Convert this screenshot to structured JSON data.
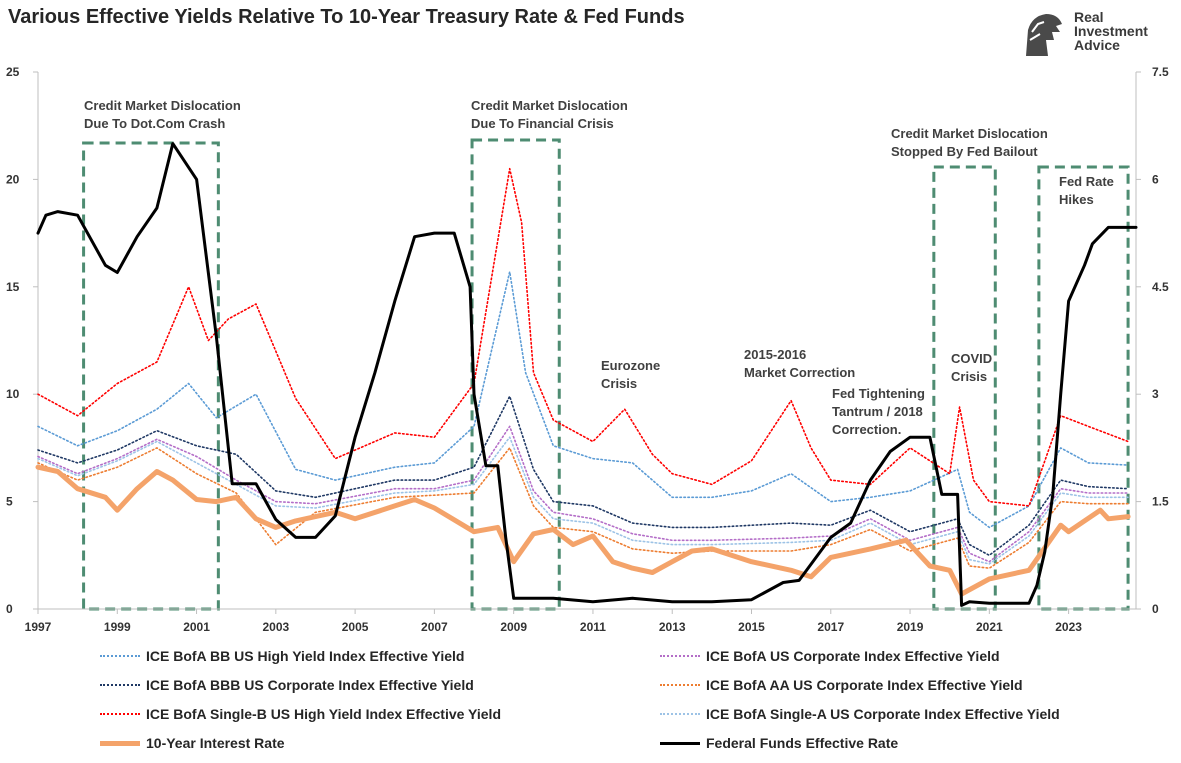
{
  "title": "Various Effective Yields Relative To 10-Year Treasury Rate & Fed Funds",
  "logo": {
    "line1": "Real",
    "line2": "Investment",
    "line3": "Advice",
    "icon": "lion-head-icon"
  },
  "chart_data": {
    "type": "line",
    "title": "Various Effective Yields Relative To 10-Year Treasury Rate & Fed Funds",
    "xlabel": "",
    "ylabel": "",
    "xlim": [
      1997,
      2024.7
    ],
    "ylim": [
      0,
      25
    ],
    "y2lim": [
      0,
      7.5
    ],
    "x_ticks": [
      "1997",
      "1999",
      "2001",
      "2003",
      "2005",
      "2007",
      "2009",
      "2011",
      "2013",
      "2015",
      "2017",
      "2019",
      "2021",
      "2023"
    ],
    "y_ticks": [
      "0",
      "5",
      "10",
      "15",
      "20",
      "25"
    ],
    "y2_ticks": [
      "0",
      "1.5",
      "3",
      "4.5",
      "6",
      "7.5"
    ],
    "grid": false,
    "legend_position": "bottom",
    "series": [
      {
        "name": "ICE BofA BB US High Yield Index Effective Yield",
        "color": "#5b9bd5",
        "style": "dotted",
        "axis": "left",
        "x": [
          1997,
          1998,
          1999,
          2000,
          2000.8,
          2001.5,
          2002.5,
          2003.5,
          2004.5,
          2006,
          2007,
          2008,
          2008.9,
          2009.3,
          2010,
          2011,
          2012,
          2013,
          2014,
          2015,
          2016,
          2017,
          2018,
          2019,
          2020.2,
          2020.5,
          2021,
          2022,
          2022.8,
          2023.5,
          2024.5
        ],
        "values": [
          8.5,
          7.6,
          8.3,
          9.3,
          10.5,
          8.9,
          10.0,
          6.5,
          6.0,
          6.6,
          6.8,
          8.5,
          15.7,
          11.0,
          7.6,
          7.0,
          6.8,
          5.2,
          5.2,
          5.5,
          6.3,
          5.0,
          5.2,
          5.5,
          6.5,
          4.5,
          3.8,
          4.8,
          7.5,
          6.8,
          6.7
        ]
      },
      {
        "name": "ICE BofA US Corporate Index Effective Yield",
        "color": "#b46ec8",
        "style": "dotted",
        "axis": "left",
        "x": [
          1997,
          1998,
          1999,
          2000,
          2001,
          2002,
          2003,
          2004,
          2006,
          2007,
          2008,
          2008.9,
          2009.5,
          2010,
          2011,
          2012,
          2013,
          2014,
          2016,
          2017,
          2018,
          2019,
          2020.2,
          2020.5,
          2021,
          2022,
          2022.8,
          2023.5,
          2024.5
        ],
        "values": [
          7.1,
          6.3,
          7.0,
          7.9,
          7.1,
          6.0,
          5.0,
          4.9,
          5.6,
          5.6,
          6.0,
          8.5,
          5.5,
          4.5,
          4.2,
          3.5,
          3.2,
          3.2,
          3.3,
          3.4,
          4.2,
          3.2,
          3.8,
          2.6,
          2.2,
          3.6,
          5.6,
          5.4,
          5.4
        ]
      },
      {
        "name": "ICE BofA BBB US Corporate Index Effective Yield",
        "color": "#1f3864",
        "style": "dotted",
        "axis": "left",
        "x": [
          1997,
          1998,
          1999,
          2000,
          2001,
          2002,
          2003,
          2004,
          2006,
          2007,
          2008,
          2008.9,
          2009.5,
          2010,
          2011,
          2012,
          2013,
          2014,
          2016,
          2017,
          2018,
          2019,
          2020.2,
          2020.5,
          2021,
          2022,
          2022.8,
          2023.5,
          2024.5
        ],
        "values": [
          7.4,
          6.8,
          7.4,
          8.3,
          7.6,
          7.2,
          5.5,
          5.2,
          6.0,
          6.0,
          6.6,
          9.9,
          6.5,
          5.0,
          4.8,
          4.0,
          3.8,
          3.8,
          4.0,
          3.9,
          4.6,
          3.6,
          4.2,
          3.0,
          2.5,
          3.9,
          6.0,
          5.7,
          5.6
        ]
      },
      {
        "name": "ICE BofA AA US Corporate Index Effective Yield",
        "color": "#ed7d31",
        "style": "dotted",
        "axis": "left",
        "x": [
          1997,
          1998,
          1999,
          2000,
          2001,
          2002,
          2003,
          2004,
          2006,
          2007,
          2008,
          2008.9,
          2009.5,
          2010,
          2011,
          2012,
          2013,
          2014,
          2016,
          2017,
          2018,
          2019,
          2020.2,
          2020.5,
          2021,
          2022,
          2022.8,
          2023.5,
          2024.5
        ],
        "values": [
          6.8,
          6.0,
          6.6,
          7.5,
          6.3,
          5.4,
          3.0,
          4.5,
          5.2,
          5.3,
          5.4,
          7.5,
          4.8,
          3.8,
          3.6,
          2.8,
          2.6,
          2.7,
          2.7,
          3.0,
          3.7,
          2.7,
          3.3,
          2.0,
          1.9,
          3.1,
          5.0,
          4.9,
          4.9
        ]
      },
      {
        "name": "ICE BofA Single-B US High Yield Index Effective Yield",
        "color": "#ff0000",
        "style": "dotted",
        "axis": "left",
        "x": [
          1997,
          1998,
          1999,
          2000,
          2000.8,
          2001.3,
          2001.8,
          2002.5,
          2003.5,
          2004.5,
          2006,
          2007,
          2008,
          2008.9,
          2009.2,
          2009.5,
          2010,
          2011,
          2011.8,
          2012.5,
          2013,
          2014,
          2015,
          2016,
          2016.5,
          2017,
          2018,
          2019,
          2020.0,
          2020.25,
          2020.6,
          2021,
          2022,
          2022.8,
          2023.5,
          2024.5
        ],
        "values": [
          10.0,
          9.0,
          10.5,
          11.5,
          15.0,
          12.5,
          13.5,
          14.2,
          9.8,
          7.0,
          8.2,
          8.0,
          10.5,
          20.5,
          18.0,
          11.0,
          8.8,
          7.8,
          9.3,
          7.2,
          6.3,
          5.8,
          6.9,
          9.7,
          7.5,
          6.0,
          5.8,
          7.5,
          6.3,
          9.4,
          6.0,
          5.0,
          4.8,
          9.0,
          8.5,
          7.8
        ]
      },
      {
        "name": "ICE BofA Single-A US Corporate Index Effective Yield",
        "color": "#9dc3e6",
        "style": "dotted",
        "axis": "left",
        "x": [
          1997,
          1998,
          1999,
          2000,
          2001,
          2002,
          2003,
          2004,
          2006,
          2007,
          2008,
          2008.9,
          2009.5,
          2010,
          2011,
          2012,
          2013,
          2014,
          2016,
          2017,
          2018,
          2019,
          2020.2,
          2020.5,
          2021,
          2022,
          2022.8,
          2023.5,
          2024.5
        ],
        "values": [
          7.0,
          6.2,
          6.9,
          7.8,
          6.8,
          5.8,
          4.8,
          4.7,
          5.4,
          5.5,
          5.8,
          8.0,
          5.2,
          4.2,
          4.0,
          3.2,
          3.0,
          3.0,
          3.1,
          3.2,
          4.0,
          3.0,
          3.6,
          2.3,
          2.1,
          3.4,
          5.4,
          5.2,
          5.2
        ]
      },
      {
        "name": "10-Year Interest Rate",
        "color": "#f4a36a",
        "style": "solid",
        "axis": "left",
        "x": [
          1997,
          1997.5,
          1998,
          1998.7,
          1999,
          1999.5,
          2000,
          2000.4,
          2001,
          2001.5,
          2002,
          2002.5,
          2003,
          2003.5,
          2004,
          2004.5,
          2005,
          2006,
          2006.5,
          2007,
          2008,
          2008.6,
          2009,
          2009.5,
          2010,
          2010.5,
          2011,
          2011.5,
          2012,
          2012.5,
          2013,
          2013.5,
          2014,
          2015,
          2016,
          2016.5,
          2017,
          2018,
          2018.9,
          2019.5,
          2020,
          2020.3,
          2021,
          2022,
          2022.8,
          2023,
          2023.8,
          2024,
          2024.5
        ],
        "values": [
          6.6,
          6.4,
          5.6,
          5.2,
          4.6,
          5.6,
          6.4,
          6.0,
          5.1,
          5.0,
          5.2,
          4.2,
          3.8,
          4.1,
          4.3,
          4.5,
          4.2,
          4.8,
          5.1,
          4.7,
          3.6,
          3.8,
          2.2,
          3.5,
          3.7,
          3.0,
          3.4,
          2.2,
          1.9,
          1.7,
          2.2,
          2.7,
          2.8,
          2.2,
          1.8,
          1.5,
          2.4,
          2.8,
          3.2,
          2.0,
          1.8,
          0.7,
          1.4,
          1.8,
          3.9,
          3.6,
          4.6,
          4.2,
          4.3
        ]
      },
      {
        "name": "Federal Funds Effective Rate",
        "color": "#000000",
        "style": "solid",
        "axis": "right",
        "x": [
          1997,
          1997.2,
          1997.5,
          1998,
          1998.7,
          1999,
          1999.5,
          2000,
          2000.4,
          2001,
          2001.5,
          2001.9,
          2002.5,
          2003,
          2003.5,
          2004,
          2004.5,
          2005,
          2005.5,
          2006,
          2006.5,
          2007,
          2007.5,
          2007.9,
          2008,
          2008.3,
          2008.6,
          2008.8,
          2009,
          2010,
          2011,
          2012,
          2013,
          2014,
          2015,
          2015.8,
          2016.2,
          2017,
          2017.5,
          2018,
          2018.5,
          2019,
          2019.5,
          2019.8,
          2020.2,
          2020.3,
          2020.5,
          2021,
          2022,
          2022.2,
          2022.4,
          2022.6,
          2022.8,
          2023,
          2023.4,
          2023.6,
          2024,
          2024.7
        ],
        "values": [
          5.25,
          5.5,
          5.55,
          5.5,
          4.8,
          4.7,
          5.2,
          5.6,
          6.5,
          6.0,
          3.8,
          1.75,
          1.75,
          1.25,
          1.0,
          1.0,
          1.3,
          2.4,
          3.3,
          4.3,
          5.2,
          5.25,
          5.25,
          4.5,
          3.0,
          2.0,
          2.0,
          1.0,
          0.15,
          0.15,
          0.1,
          0.15,
          0.1,
          0.1,
          0.13,
          0.37,
          0.4,
          1.0,
          1.2,
          1.8,
          2.2,
          2.4,
          2.4,
          1.6,
          1.6,
          0.05,
          0.1,
          0.08,
          0.08,
          0.33,
          0.8,
          1.6,
          3.0,
          4.3,
          4.8,
          5.1,
          5.33,
          5.33
        ]
      }
    ],
    "annotations": [
      {
        "line1": "Credit Market Dislocation",
        "line2": "Due To Dot.Com Crash"
      },
      {
        "line1": "Credit Market Dislocation",
        "line2": "Due To Financial Crisis"
      },
      {
        "line1": "Credit Market Dislocation",
        "line2": "Stopped By Fed Bailout"
      },
      {
        "line1": "Fed Rate",
        "line2": "Hikes"
      },
      {
        "line1": "Eurozone",
        "line2": "Crisis"
      },
      {
        "line1": "2015-2016",
        "line2": "Market Correction"
      },
      {
        "line1": "Fed Tightening",
        "line2": "Tantrum / 2018",
        "line3": "Correction."
      },
      {
        "line1": "COVID",
        "line2": "Crisis"
      }
    ],
    "boxes": [
      {
        "x0": 1998.15,
        "x1": 2001.55
      },
      {
        "x0": 2007.95,
        "x1": 2010.15
      },
      {
        "x0": 2019.6,
        "x1": 2021.15
      },
      {
        "x0": 2022.25,
        "x1": 2024.5
      }
    ]
  }
}
